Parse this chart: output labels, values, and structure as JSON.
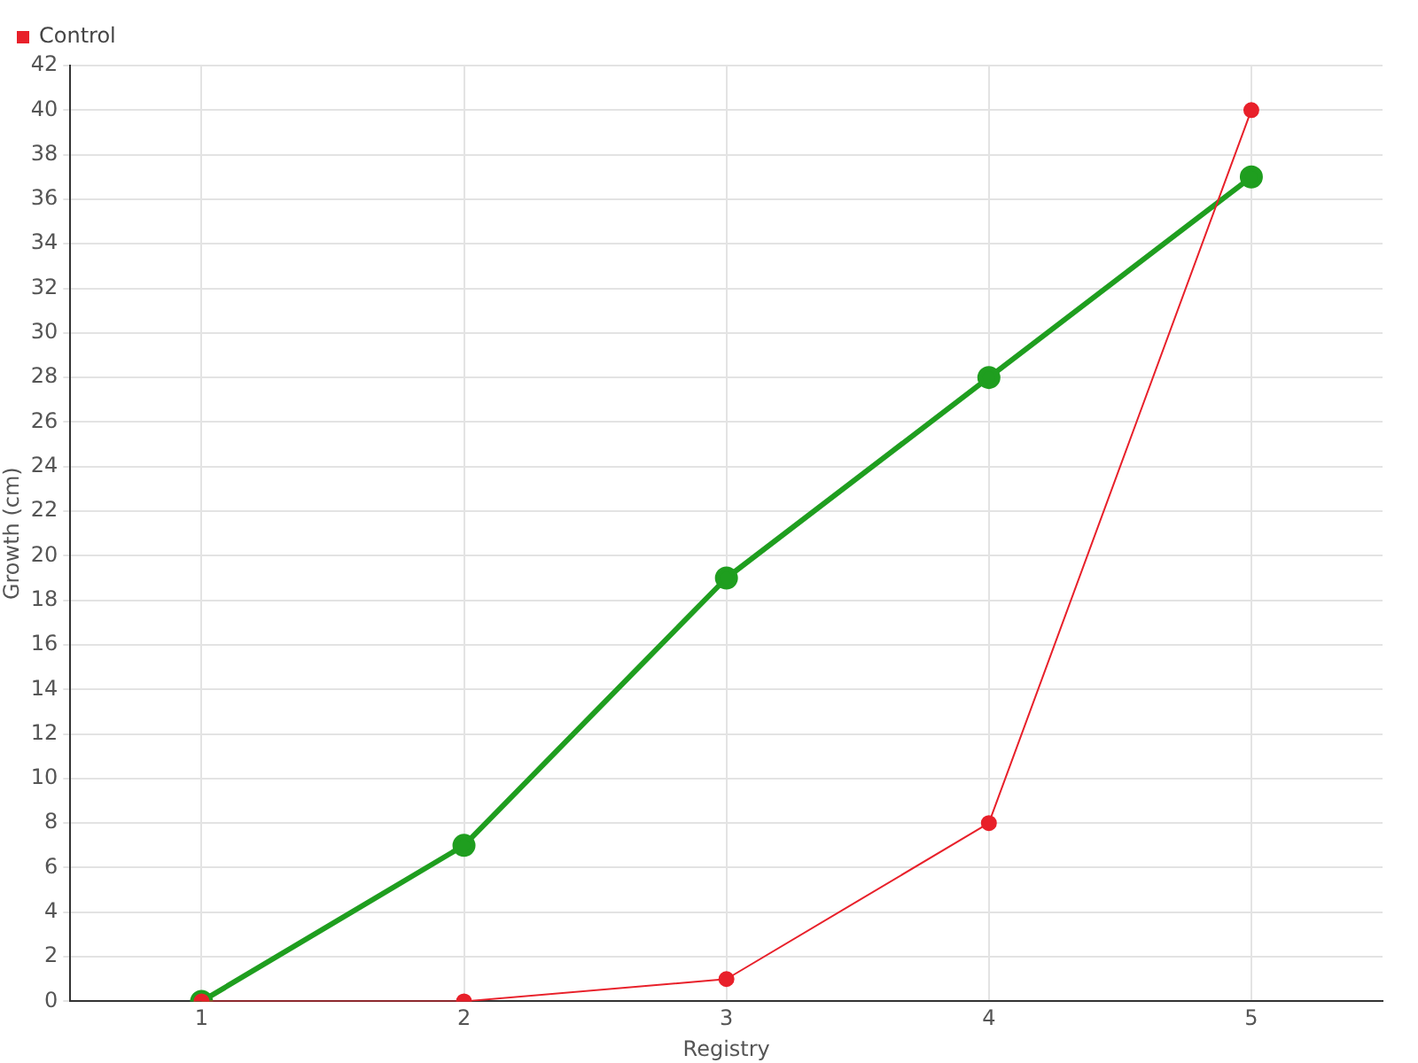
{
  "chart_data": {
    "type": "line",
    "xlabel": "Registry",
    "ylabel": "Growth (cm)",
    "x": [
      1,
      2,
      3,
      4,
      5
    ],
    "xlim": [
      0.5,
      5.5
    ],
    "xticks": [
      1,
      2,
      3,
      4,
      5
    ],
    "ylim": [
      0,
      42
    ],
    "yticks": [
      0,
      2,
      4,
      6,
      8,
      10,
      12,
      14,
      16,
      18,
      20,
      22,
      24,
      26,
      28,
      30,
      32,
      34,
      36,
      38,
      40,
      42
    ],
    "grid": true,
    "legend": "top left",
    "marker": "circle",
    "series": [
      {
        "color": "#1f9e1f",
        "values": [
          0,
          7,
          19,
          28,
          37
        ]
      },
      {
        "name": "Control",
        "color": "#e8202a",
        "values": [
          0,
          0,
          1,
          8,
          40
        ]
      }
    ]
  }
}
